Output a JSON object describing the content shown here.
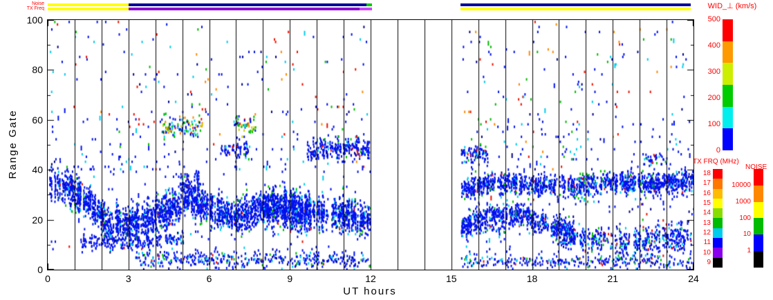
{
  "plot": {
    "x_axis": {
      "label": "UT hours",
      "ticks": [
        0,
        3,
        6,
        9,
        12,
        15,
        18,
        21,
        24
      ],
      "range": [
        0,
        24
      ]
    },
    "y_axis": {
      "label": "Range Gate",
      "ticks": [
        0,
        20,
        40,
        60,
        80,
        100
      ],
      "minor_step": 10,
      "range": [
        0,
        100
      ]
    },
    "gridlines": {
      "vertical_every_hours": 1,
      "color": "#000000"
    }
  },
  "strips": {
    "noise_label": "Noise",
    "txfreq_label": "TX Freq",
    "label_color": "#ff0000",
    "noise_segments": [
      {
        "t0": 0,
        "t1": 3,
        "color": "#ffff00"
      },
      {
        "t0": 3,
        "t1": 11.85,
        "color": "#000099"
      },
      {
        "t0": 11.85,
        "t1": 12.05,
        "color": "#00cc00"
      },
      {
        "t0": 15.35,
        "t1": 23.9,
        "color": "#000099"
      }
    ],
    "txfreq_segments": [
      {
        "t0": 0,
        "t1": 3,
        "color": "#ffff00"
      },
      {
        "t0": 3,
        "t1": 11.6,
        "color": "#8800cc"
      },
      {
        "t0": 11.6,
        "t1": 12.05,
        "color": "#cc44ff"
      },
      {
        "t0": 15.35,
        "t1": 23.9,
        "color": "#ffff00"
      }
    ]
  },
  "colorbars": {
    "label_color": "#ff0000",
    "wid": {
      "title": "WID_⊥ (km/s)",
      "tick_labels": [
        "500",
        "400",
        "300",
        "200",
        "100",
        "0"
      ],
      "segments": [
        "#ff0000",
        "#ff9900",
        "#ccee00",
        "#00cc00",
        "#00eeee",
        "#0000ff"
      ]
    },
    "txfrq": {
      "title": "TX FRQ (MHz)",
      "tick_labels": [
        "18",
        "17",
        "16",
        "15",
        "14",
        "13",
        "12",
        "11",
        "10",
        "9"
      ],
      "segments": [
        "#ff0000",
        "#ff7700",
        "#ffbb00",
        "#ffff00",
        "#88dd00",
        "#00bb00",
        "#00ccee",
        "#0000ff",
        "#8800ee",
        "#000000"
      ]
    },
    "noise": {
      "title": "NOISE",
      "tick_labels": [
        "10000",
        "1000",
        "100",
        "10",
        "1"
      ],
      "segments": [
        "#ff0000",
        "#ff8800",
        "#ffff00",
        "#00bb00",
        "#0000ff",
        "#000000"
      ]
    }
  },
  "chart_data": {
    "type": "heatmap",
    "description": "Radar range-time plot of perpendicular spectral width (WID_⊥, km/s) versus UT hours (0-24) and range gate (0-100). Dominated by low-width (blue, 0-100 km/s) echoes in a meandering band between gates ~8-45, with sparse higher-width (cyan/green/orange/red) points scattered above gate 40 and a complete data gap between ~12.1 and ~15.3 UT. Top strips show noise level and transmit frequency versus time.",
    "x_range": [
      0,
      24
    ],
    "y_range": [
      0,
      100
    ],
    "value_range_km_s": [
      0,
      500
    ],
    "data_gap": [
      12.05,
      15.35
    ],
    "seed": 1337,
    "point_colors": {
      "blue": "#0011ee",
      "navy": "#000088",
      "cyan": "#00ccee",
      "green": "#00bb00",
      "yellow": "#cccc00",
      "orange": "#ff8800",
      "red": "#ee1100"
    },
    "palettes": {
      "bandBlue": [
        [
          "blue",
          0.88
        ],
        [
          "cyan",
          0.06
        ],
        [
          "navy",
          0.03
        ],
        [
          "green",
          0.02
        ],
        [
          "red",
          0.01
        ]
      ],
      "blueish": [
        [
          "blue",
          0.74
        ],
        [
          "cyan",
          0.12
        ],
        [
          "navy",
          0.05
        ],
        [
          "green",
          0.05
        ],
        [
          "red",
          0.04
        ]
      ],
      "mixed": [
        [
          "blue",
          0.44
        ],
        [
          "cyan",
          0.13
        ],
        [
          "green",
          0.13
        ],
        [
          "red",
          0.14
        ],
        [
          "orange",
          0.08
        ],
        [
          "navy",
          0.08
        ]
      ],
      "mixedBlue": [
        [
          "blue",
          0.6
        ],
        [
          "cyan",
          0.14
        ],
        [
          "green",
          0.08
        ],
        [
          "red",
          0.08
        ],
        [
          "orange",
          0.05
        ],
        [
          "navy",
          0.05
        ]
      ],
      "greenMix": [
        [
          "green",
          0.34
        ],
        [
          "yellow",
          0.12
        ],
        [
          "orange",
          0.12
        ],
        [
          "cyan",
          0.13
        ],
        [
          "blue",
          0.2
        ],
        [
          "red",
          0.09
        ]
      ]
    },
    "bands": [
      {
        "t0": 0.05,
        "t1": 11.95,
        "path": [
          [
            0,
            35
          ],
          [
            0.7,
            33
          ],
          [
            1.5,
            27
          ],
          [
            2.2,
            19
          ],
          [
            3,
            18
          ],
          [
            3.8,
            21
          ],
          [
            4.5,
            24
          ],
          [
            5.2,
            28
          ],
          [
            6,
            25
          ],
          [
            6.8,
            21
          ],
          [
            7.5,
            23
          ],
          [
            8.3,
            26
          ],
          [
            9,
            24
          ],
          [
            10,
            22
          ],
          [
            11,
            22
          ],
          [
            11.95,
            20
          ]
        ],
        "halfWidth": 8,
        "density": 0.9,
        "palette": "bandBlue"
      },
      {
        "t0": 1.2,
        "t1": 5.0,
        "path": [
          [
            1.2,
            12
          ],
          [
            3,
            10
          ],
          [
            5,
            13
          ]
        ],
        "halfWidth": 4,
        "density": 0.45,
        "palette": "bandBlue"
      },
      {
        "t0": 3.2,
        "t1": 11.95,
        "path": [
          [
            3.2,
            4
          ],
          [
            11.95,
            4
          ]
        ],
        "halfWidth": 4,
        "density": 0.32,
        "palette": "blueish"
      },
      {
        "t0": 4.2,
        "t1": 5.7,
        "path": [
          [
            4.2,
            57
          ],
          [
            5.7,
            58
          ]
        ],
        "halfWidth": 5,
        "density": 0.3,
        "palette": "greenMix"
      },
      {
        "t0": 6.9,
        "t1": 7.7,
        "path": [
          [
            6.9,
            58
          ],
          [
            7.7,
            57
          ]
        ],
        "halfWidth": 4,
        "density": 0.32,
        "palette": "greenMix"
      },
      {
        "t0": 6.4,
        "t1": 7.4,
        "path": [
          [
            6.4,
            48
          ],
          [
            7.4,
            49
          ]
        ],
        "halfWidth": 4,
        "density": 0.55,
        "palette": "bandBlue"
      },
      {
        "t0": 9.6,
        "t1": 11.9,
        "path": [
          [
            9.6,
            48
          ],
          [
            11.9,
            49
          ]
        ],
        "halfWidth": 5,
        "density": 0.6,
        "palette": "bandBlue"
      },
      {
        "t0": 4.9,
        "t1": 5.6,
        "path": [
          [
            4.9,
            33
          ],
          [
            5.6,
            34
          ]
        ],
        "halfWidth": 5,
        "density": 0.55,
        "palette": "bandBlue"
      },
      {
        "t0": 7.9,
        "t1": 9.6,
        "path": [
          [
            7.9,
            24
          ],
          [
            9.6,
            23
          ]
        ],
        "halfWidth": 10,
        "density": 0.5,
        "palette": "bandBlue"
      },
      {
        "t0": 15.35,
        "t1": 23.95,
        "path": [
          [
            15.35,
            32
          ],
          [
            16.5,
            35
          ],
          [
            18,
            34
          ],
          [
            19.5,
            33
          ],
          [
            21,
            35
          ],
          [
            22.5,
            34
          ],
          [
            23.95,
            35
          ]
        ],
        "halfWidth": 5,
        "density": 0.85,
        "palette": "bandBlue"
      },
      {
        "t0": 15.35,
        "t1": 19.5,
        "path": [
          [
            15.35,
            17
          ],
          [
            16.5,
            21
          ],
          [
            17.5,
            22
          ],
          [
            18.5,
            18
          ],
          [
            19.5,
            15
          ]
        ],
        "halfWidth": 6,
        "density": 0.7,
        "palette": "bandBlue"
      },
      {
        "t0": 19.0,
        "t1": 23.95,
        "path": [
          [
            19,
            14
          ],
          [
            21,
            10
          ],
          [
            22.5,
            12
          ],
          [
            23.95,
            13
          ]
        ],
        "halfWidth": 7,
        "density": 0.45,
        "palette": "blueish"
      },
      {
        "t0": 15.35,
        "t1": 23.95,
        "path": [
          [
            15.35,
            3
          ],
          [
            23.95,
            3
          ]
        ],
        "halfWidth": 3,
        "density": 0.28,
        "palette": "blueish"
      },
      {
        "t0": 15.35,
        "t1": 16.3,
        "path": [
          [
            15.35,
            46
          ],
          [
            16.3,
            46
          ]
        ],
        "halfWidth": 4,
        "density": 0.5,
        "palette": "blueish"
      },
      {
        "t0": 22.2,
        "t1": 23.0,
        "path": [
          [
            22.2,
            44
          ],
          [
            23,
            44
          ]
        ],
        "halfWidth": 3,
        "density": 0.35,
        "palette": "blueish"
      }
    ],
    "scatter": [
      {
        "t0": 0.05,
        "t1": 11.95,
        "g0": 60,
        "g1": 100,
        "density": 0.011,
        "palette": "mixed"
      },
      {
        "t0": 0.05,
        "t1": 11.95,
        "g0": 40,
        "g1": 60,
        "density": 0.022,
        "palette": "mixedBlue"
      },
      {
        "t0": 0.05,
        "t1": 11.95,
        "g0": 8,
        "g1": 45,
        "density": 0.012,
        "palette": "blueish"
      },
      {
        "t0": 15.35,
        "t1": 23.95,
        "g0": 60,
        "g1": 100,
        "density": 0.013,
        "palette": "mixed"
      },
      {
        "t0": 15.35,
        "t1": 23.95,
        "g0": 40,
        "g1": 60,
        "density": 0.03,
        "palette": "mixedBlue"
      },
      {
        "t0": 15.35,
        "t1": 23.95,
        "g0": 22,
        "g1": 40,
        "density": 0.028,
        "palette": "blueish"
      },
      {
        "t0": 15.35,
        "t1": 19.5,
        "g0": 5,
        "g1": 22,
        "density": 0.02,
        "palette": "blueish"
      }
    ]
  }
}
